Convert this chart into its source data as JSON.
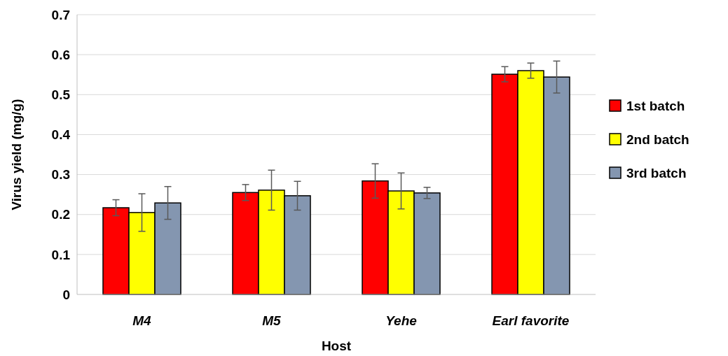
{
  "chart_data": {
    "type": "bar",
    "xlabel": "Host",
    "ylabel": "Virus yield (mg/g)",
    "categories": [
      "M4",
      "M5",
      "Yehe",
      "Earl favorite"
    ],
    "series": [
      {
        "name": "1st batch",
        "color": "#ff0000",
        "values": [
          0.217,
          0.255,
          0.284,
          0.551
        ],
        "errors": [
          0.02,
          0.02,
          0.043,
          0.019
        ]
      },
      {
        "name": "2nd batch",
        "color": "#ffff00",
        "values": [
          0.205,
          0.261,
          0.259,
          0.56
        ],
        "errors": [
          0.047,
          0.05,
          0.045,
          0.019
        ]
      },
      {
        "name": "3rd batch",
        "color": "#8496b0",
        "values": [
          0.229,
          0.247,
          0.254,
          0.544
        ],
        "errors": [
          0.041,
          0.036,
          0.014,
          0.04
        ]
      }
    ],
    "ylim": [
      0,
      0.7
    ],
    "yticks": [
      {
        "value": 0,
        "label": "0"
      },
      0.1,
      0.2,
      0.3,
      0.4,
      0.5,
      0.6,
      0.7
    ],
    "grid": "y",
    "legend": "right"
  }
}
